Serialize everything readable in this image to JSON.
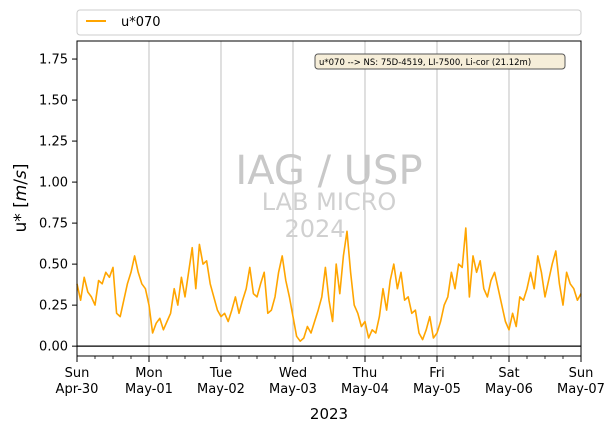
{
  "chart_data": {
    "type": "line",
    "xlabel": "2023",
    "ylabel": "u* [m/s]",
    "ylim": [
      -0.06,
      1.86
    ],
    "yticks": [
      0.0,
      0.25,
      0.5,
      0.75,
      1.0,
      1.25,
      1.5,
      1.75
    ],
    "ytick_labels": [
      "0.00",
      "0.25",
      "0.50",
      "0.75",
      "1.00",
      "1.25",
      "1.50",
      "1.75"
    ],
    "xlim_days": [
      0,
      7
    ],
    "xticks": [
      {
        "day": "Sun",
        "date": "Apr-30"
      },
      {
        "day": "Mon",
        "date": "May-01"
      },
      {
        "day": "Tue",
        "date": "May-02"
      },
      {
        "day": "Wed",
        "date": "May-03"
      },
      {
        "day": "Thu",
        "date": "May-04"
      },
      {
        "day": "Fri",
        "date": "May-05"
      },
      {
        "day": "Sat",
        "date": "May-06"
      },
      {
        "day": "Sun",
        "date": "May-07"
      }
    ],
    "grid": "vertical at day ticks",
    "legend_position": "top, above plot",
    "annotation": "u*070 --> NS: 75D-4519, LI-7500, Li-cor (21.12m)",
    "watermark": [
      "IAG / USP",
      "LAB MICRO",
      "2024"
    ],
    "series": [
      {
        "name": "u*070",
        "color": "#ffa500",
        "x": [
          0.0,
          0.05,
          0.1,
          0.15,
          0.2,
          0.25,
          0.3,
          0.35,
          0.4,
          0.45,
          0.5,
          0.55,
          0.6,
          0.65,
          0.7,
          0.75,
          0.8,
          0.85,
          0.9,
          0.95,
          1.0,
          1.05,
          1.1,
          1.15,
          1.2,
          1.25,
          1.3,
          1.35,
          1.4,
          1.45,
          1.5,
          1.55,
          1.6,
          1.65,
          1.7,
          1.75,
          1.8,
          1.85,
          1.9,
          1.95,
          2.0,
          2.05,
          2.1,
          2.15,
          2.2,
          2.25,
          2.3,
          2.35,
          2.4,
          2.45,
          2.5,
          2.55,
          2.6,
          2.65,
          2.7,
          2.75,
          2.8,
          2.85,
          2.9,
          2.95,
          3.0,
          3.05,
          3.1,
          3.15,
          3.2,
          3.25,
          3.3,
          3.35,
          3.4,
          3.45,
          3.5,
          3.55,
          3.6,
          3.65,
          3.7,
          3.75,
          3.8,
          3.85,
          3.9,
          3.95,
          4.0,
          4.05,
          4.1,
          4.15,
          4.2,
          4.25,
          4.3,
          4.35,
          4.4,
          4.45,
          4.5,
          4.55,
          4.6,
          4.65,
          4.7,
          4.75,
          4.8,
          4.85,
          4.9,
          4.95,
          5.0,
          5.05,
          5.1,
          5.15,
          5.2,
          5.25,
          5.3,
          5.35,
          5.4,
          5.45,
          5.5,
          5.55,
          5.6,
          5.65,
          5.7,
          5.75,
          5.8,
          5.85,
          5.9,
          5.95,
          6.0,
          6.05,
          6.1,
          6.15,
          6.2,
          6.25,
          6.3,
          6.35,
          6.4,
          6.45,
          6.5,
          6.55,
          6.6,
          6.65,
          6.7,
          6.75,
          6.8,
          6.85,
          6.9,
          6.95,
          7.0
        ],
        "values": [
          0.38,
          0.28,
          0.42,
          0.33,
          0.3,
          0.25,
          0.4,
          0.38,
          0.45,
          0.42,
          0.48,
          0.2,
          0.18,
          0.28,
          0.38,
          0.45,
          0.55,
          0.45,
          0.38,
          0.35,
          0.25,
          0.08,
          0.14,
          0.17,
          0.1,
          0.15,
          0.2,
          0.35,
          0.25,
          0.42,
          0.3,
          0.45,
          0.6,
          0.35,
          0.62,
          0.5,
          0.52,
          0.38,
          0.3,
          0.22,
          0.18,
          0.2,
          0.15,
          0.22,
          0.3,
          0.2,
          0.28,
          0.35,
          0.48,
          0.32,
          0.3,
          0.38,
          0.45,
          0.2,
          0.22,
          0.3,
          0.45,
          0.55,
          0.4,
          0.3,
          0.18,
          0.06,
          0.03,
          0.05,
          0.12,
          0.08,
          0.15,
          0.22,
          0.3,
          0.48,
          0.28,
          0.15,
          0.5,
          0.32,
          0.55,
          0.7,
          0.45,
          0.25,
          0.2,
          0.12,
          0.15,
          0.05,
          0.1,
          0.08,
          0.18,
          0.35,
          0.22,
          0.4,
          0.5,
          0.35,
          0.45,
          0.28,
          0.3,
          0.2,
          0.22,
          0.08,
          0.04,
          0.1,
          0.18,
          0.05,
          0.08,
          0.15,
          0.25,
          0.3,
          0.45,
          0.35,
          0.5,
          0.48,
          0.72,
          0.3,
          0.55,
          0.45,
          0.52,
          0.35,
          0.3,
          0.4,
          0.45,
          0.35,
          0.25,
          0.15,
          0.1,
          0.2,
          0.12,
          0.3,
          0.28,
          0.35,
          0.45,
          0.35,
          0.55,
          0.45,
          0.3,
          0.4,
          0.5,
          0.58,
          0.38,
          0.25,
          0.45,
          0.38,
          0.35,
          0.28,
          0.32
        ]
      }
    ]
  }
}
